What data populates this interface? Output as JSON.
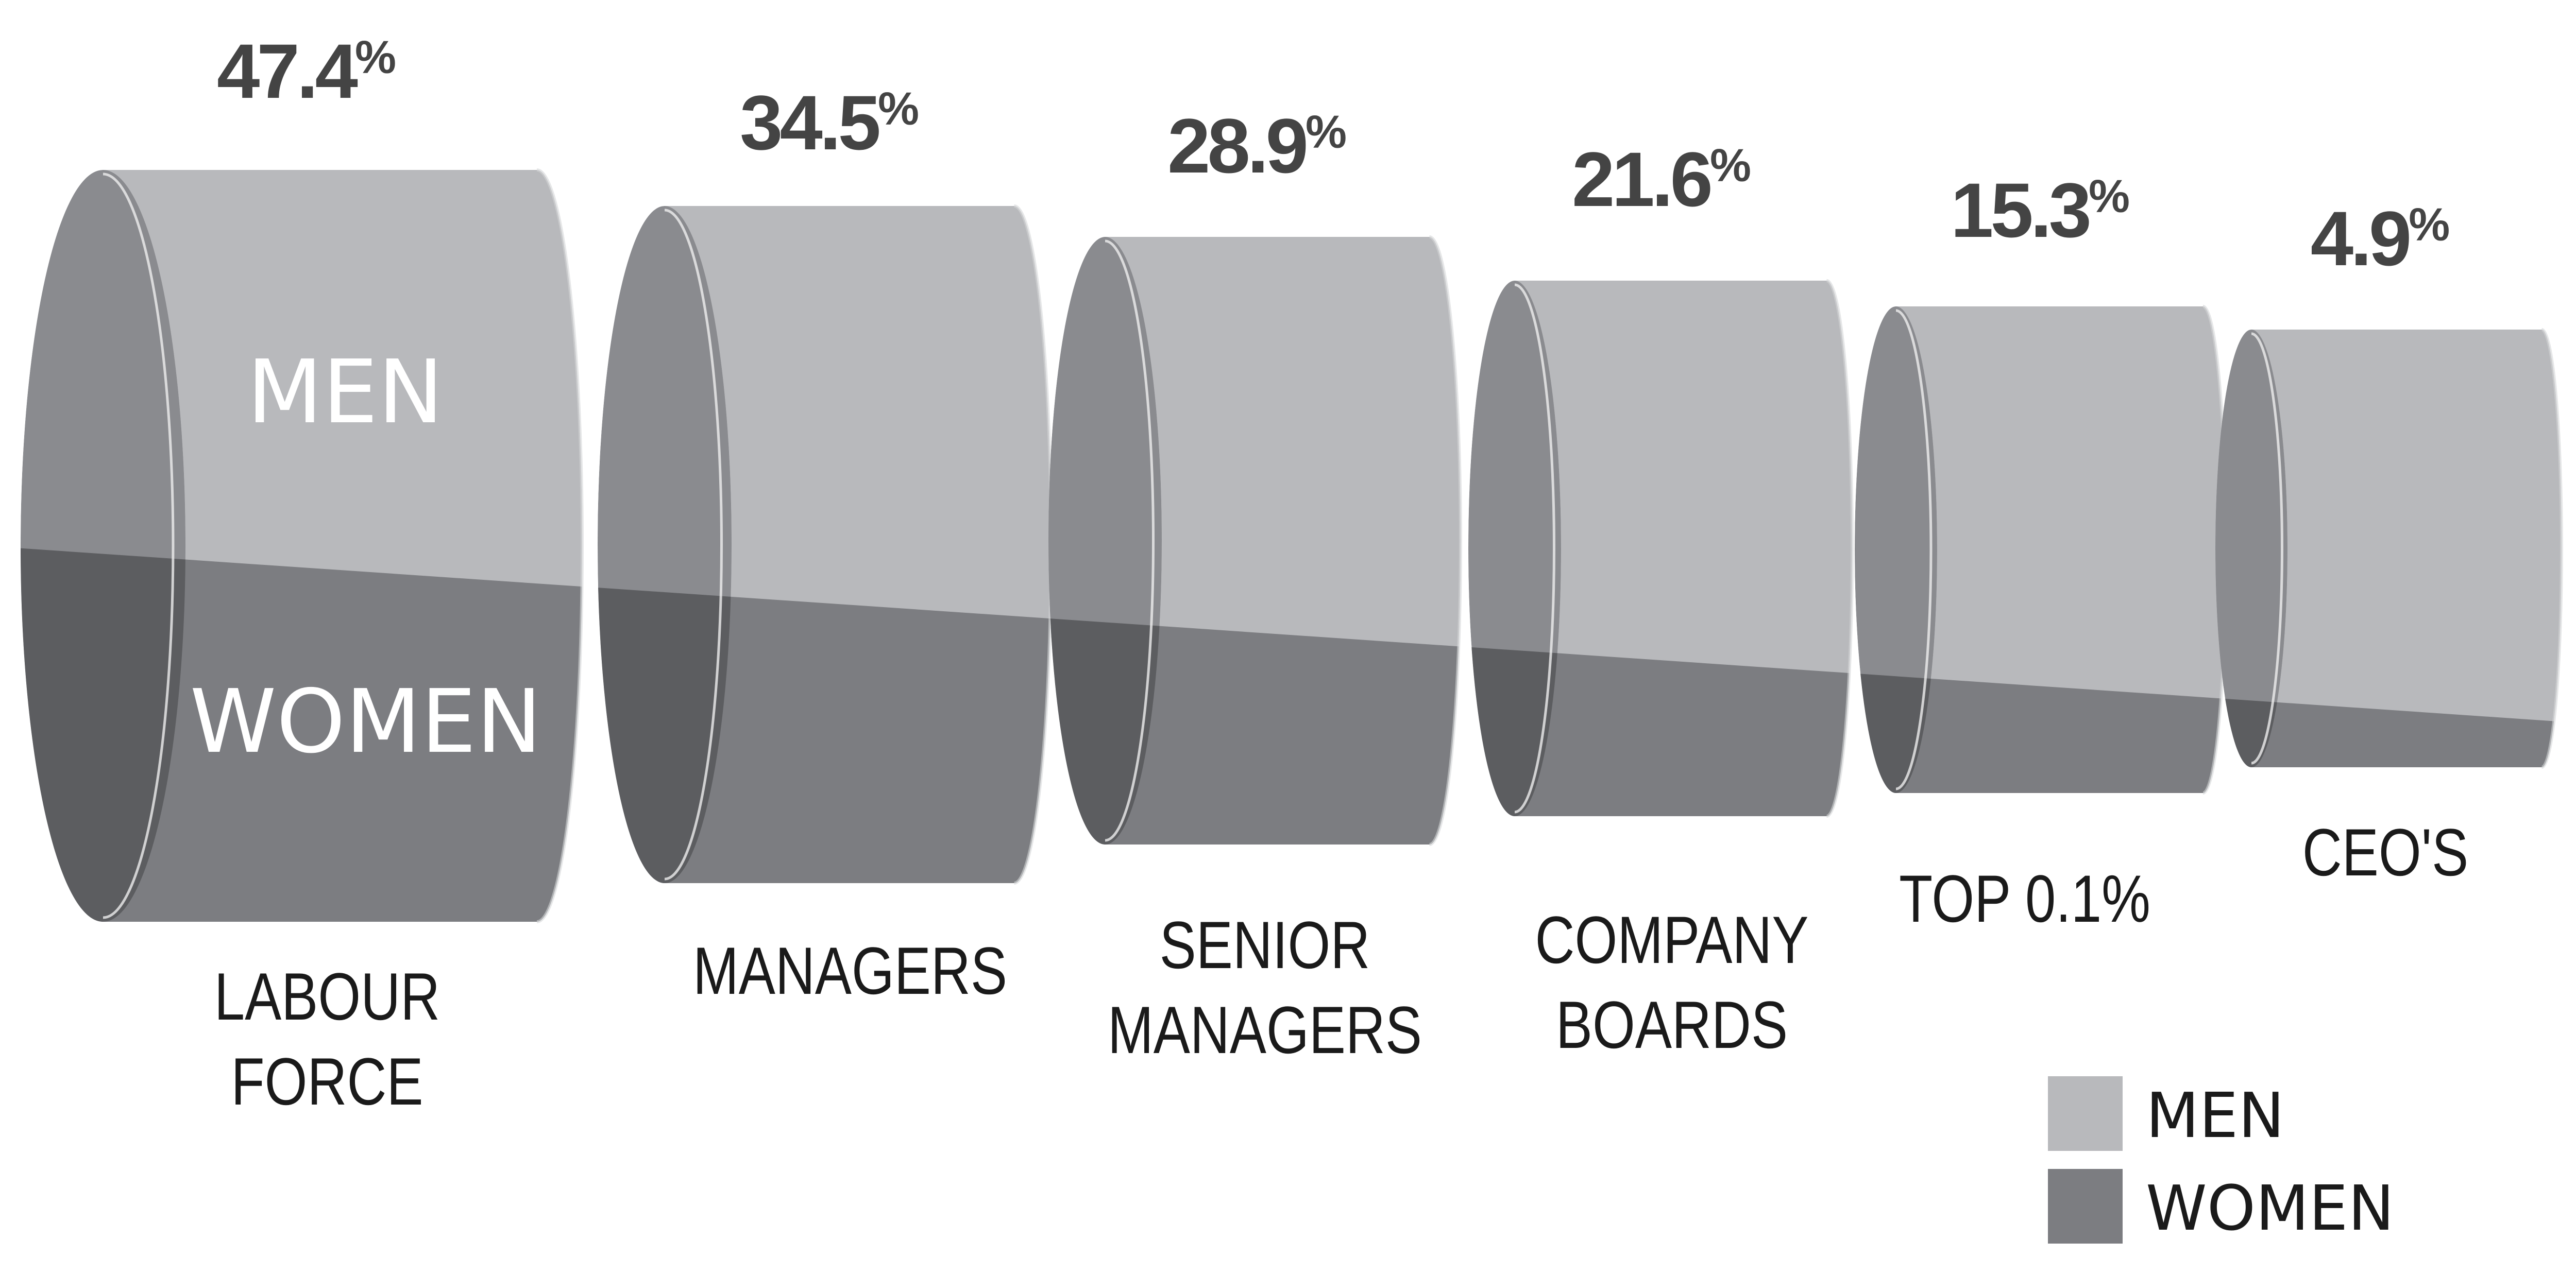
{
  "chart_data": {
    "type": "bar",
    "categories": [
      [
        "LABOUR",
        "FORCE"
      ],
      [
        "MANAGERS"
      ],
      [
        "SENIOR",
        "MANAGERS"
      ],
      [
        "COMPANY",
        "BOARDS"
      ],
      [
        "TOP 0.1%"
      ],
      [
        "CEO'S"
      ]
    ],
    "series": [
      {
        "name": "WOMEN",
        "values": [
          47.4,
          34.5,
          28.9,
          21.6,
          15.3,
          4.9
        ]
      }
    ],
    "value_labels": [
      "47.4",
      "34.5",
      "28.9",
      "21.6",
      "15.3",
      "4.9"
    ],
    "value_suffix": "%",
    "inside_labels": {
      "men": "MEN",
      "women": "WOMEN"
    },
    "legend": [
      {
        "name": "MEN",
        "color": "#b8b9bc"
      },
      {
        "name": "WOMEN",
        "color": "#7c7d81"
      }
    ],
    "colors": {
      "men": "#b8b9bc",
      "women": "#7c7d81",
      "cap_light": "#8a8b8f",
      "cap_dark": "#5c5d60",
      "label": "#444444"
    }
  }
}
